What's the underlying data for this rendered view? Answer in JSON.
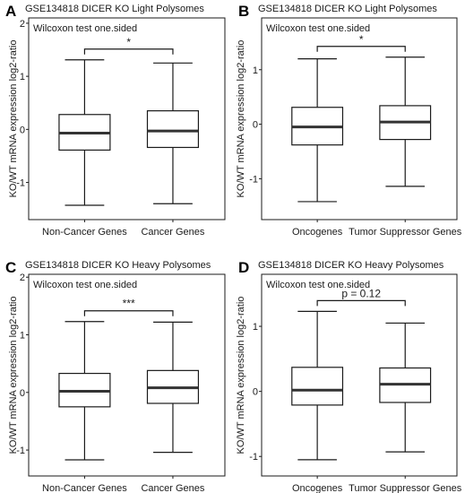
{
  "figure": {
    "background": "#ffffff",
    "box_fill": "#ffffff",
    "line_color": "#1a1a1a",
    "median_color": "#333333"
  },
  "chart_data": [
    {
      "panel_letter": "A",
      "type": "box",
      "title": "GSE134818 DICER KO Light Polysomes",
      "ylabel": "KO/WT mRNA expression log2-ratio",
      "test_label": "Wilcoxon test one.sided",
      "significance": "*",
      "ylim": [
        -1.7,
        2.1
      ],
      "yticks": [
        -1,
        0,
        1,
        2
      ],
      "categories": [
        "Non-Cancer Genes",
        "Cancer Genes"
      ],
      "boxes": [
        {
          "whisker_low": -1.43,
          "q1": -0.39,
          "median": -0.07,
          "q3": 0.28,
          "whisker_high": 1.31
        },
        {
          "whisker_low": -1.4,
          "q1": -0.34,
          "median": -0.03,
          "q3": 0.35,
          "whisker_high": 1.25
        }
      ]
    },
    {
      "panel_letter": "B",
      "type": "box",
      "title": "GSE134818 DICER KO Light Polysomes",
      "ylabel": "KO/WT mRNA expression log2-ratio",
      "test_label": "Wilcoxon test one.sided",
      "significance": "*",
      "ylim": [
        -1.75,
        1.95
      ],
      "yticks": [
        -1,
        0,
        1
      ],
      "categories": [
        "Oncogenes",
        "Tumor Suppressor Genes"
      ],
      "boxes": [
        {
          "whisker_low": -1.42,
          "q1": -0.38,
          "median": -0.05,
          "q3": 0.31,
          "whisker_high": 1.2
        },
        {
          "whisker_low": -1.14,
          "q1": -0.28,
          "median": 0.04,
          "q3": 0.34,
          "whisker_high": 1.23
        }
      ]
    },
    {
      "panel_letter": "C",
      "type": "box",
      "title": "GSE134818 DICER KO Heavy Polysomes",
      "ylabel": "KO/WT mRNA expression log2-ratio",
      "test_label": "Wilcoxon test one.sided",
      "significance": "***",
      "ylim": [
        -1.45,
        2.05
      ],
      "yticks": [
        -1,
        0,
        1,
        2
      ],
      "categories": [
        "Non-Cancer Genes",
        "Cancer Genes"
      ],
      "boxes": [
        {
          "whisker_low": -1.17,
          "q1": -0.25,
          "median": 0.02,
          "q3": 0.33,
          "whisker_high": 1.23
        },
        {
          "whisker_low": -1.04,
          "q1": -0.19,
          "median": 0.08,
          "q3": 0.38,
          "whisker_high": 1.22
        }
      ]
    },
    {
      "panel_letter": "D",
      "type": "box",
      "title": "GSE134818 DICER KO Heavy Polysomes",
      "ylabel": "KO/WT mRNA expression log2-ratio",
      "test_label": "Wilcoxon test one.sided",
      "significance": "p = 0.12",
      "ylim": [
        -1.3,
        1.8
      ],
      "yticks": [
        -1,
        0,
        1
      ],
      "categories": [
        "Oncogenes",
        "Tumor Suppressor Genes"
      ],
      "boxes": [
        {
          "whisker_low": -1.05,
          "q1": -0.21,
          "median": 0.02,
          "q3": 0.37,
          "whisker_high": 1.23
        },
        {
          "whisker_low": -0.93,
          "q1": -0.17,
          "median": 0.11,
          "q3": 0.36,
          "whisker_high": 1.05
        }
      ]
    }
  ]
}
